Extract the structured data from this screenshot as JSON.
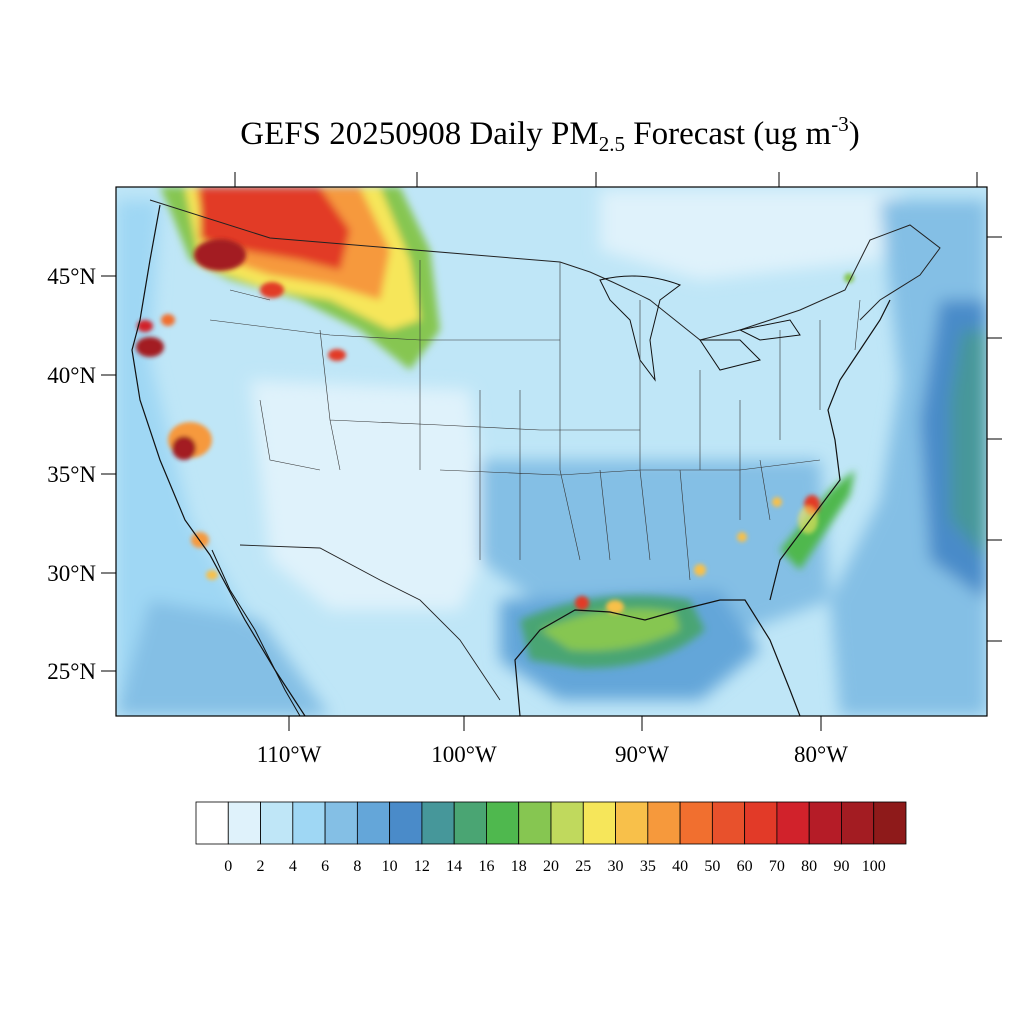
{
  "title": {
    "prefix": "GEFS 20250908 Daily PM",
    "subscript": "2.5",
    "middle": " Forecast (ug m",
    "superscript": "-3",
    "suffix": ")"
  },
  "lat_labels": [
    "45°N",
    "40°N",
    "35°N",
    "30°N",
    "25°N"
  ],
  "lon_labels": [
    "110°W",
    "100°W",
    "90°W",
    "80°W"
  ],
  "colorbar": {
    "labels": [
      "0",
      "2",
      "4",
      "6",
      "8",
      "10",
      "12",
      "14",
      "16",
      "18",
      "20",
      "25",
      "30",
      "35",
      "40",
      "50",
      "60",
      "70",
      "80",
      "90",
      "100"
    ],
    "colors": [
      "#ffffff",
      "#dff2fb",
      "#bfe6f7",
      "#9fd7f4",
      "#84bfe5",
      "#64a6d9",
      "#4a8bc9",
      "#46979a",
      "#4aa573",
      "#4fb84e",
      "#86c651",
      "#c0d95d",
      "#f6e65a",
      "#f8c04a",
      "#f6993c",
      "#f16f2f",
      "#e8512c",
      "#e23a28",
      "#d1222b",
      "#b51c27",
      "#a31c22",
      "#8e1a1a"
    ]
  },
  "palette": {
    "background_field": "#bfe6f7",
    "coast_line": "#111111",
    "state_line": "#333333"
  }
}
